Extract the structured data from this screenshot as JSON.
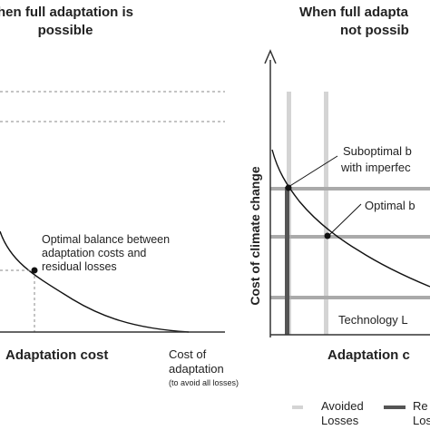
{
  "left_panel": {
    "title_line1": "hen full adaptation is",
    "title_line2": "possible",
    "annotation_line1": "Optimal balance between",
    "annotation_line2": "adaptation costs and",
    "annotation_line3": "residual losses",
    "x_axis_label": "Adaptation cost",
    "cost_label_line1": "Cost of",
    "cost_label_line2": "adaptation",
    "cost_label_line3": "(to avoid all losses)"
  },
  "right_panel": {
    "title_line1": "When full adapta",
    "title_line2": "not possib",
    "y_axis_label": "Cost of climate change",
    "suboptimal_line1": "Suboptimal b",
    "suboptimal_line2": "with imperfec",
    "optimal_label": "Optimal b",
    "technology_label": "Technology L",
    "x_axis_label": "Adaptation c"
  },
  "legend": {
    "avoided_line1": "Avoided",
    "avoided_line2": "Losses",
    "residual_line1": "Re",
    "residual_line2": "Losses"
  },
  "colors": {
    "axis": "#333333",
    "curve": "#111111",
    "avoided_losses": "#d4d4d4",
    "residual_losses": "#555555",
    "optimal_band": "#aaaaaa",
    "dashed": "#888888"
  }
}
